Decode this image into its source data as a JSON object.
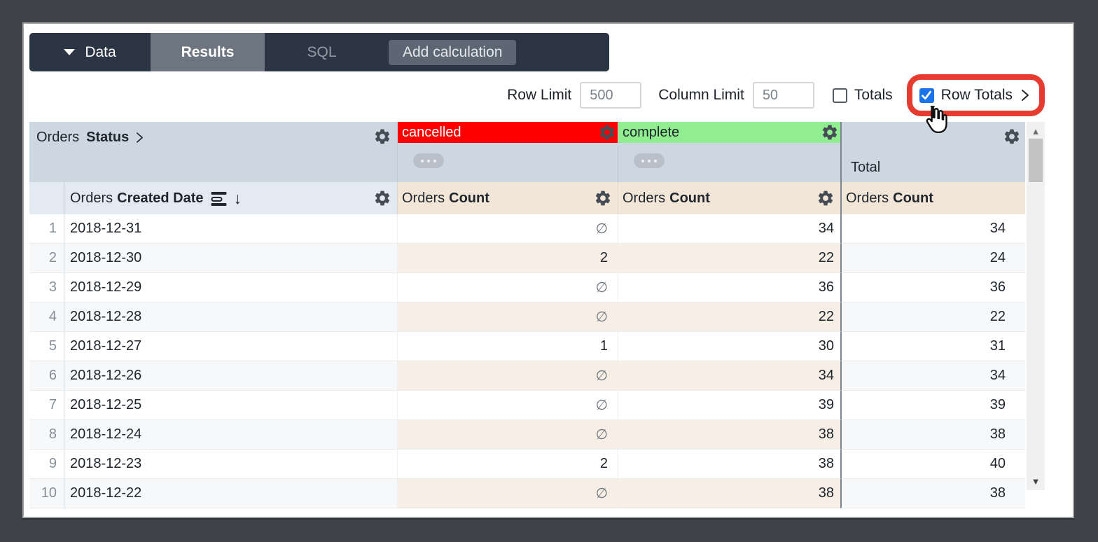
{
  "toolbar": {
    "data_label": "Data",
    "results_label": "Results",
    "sql_label": "SQL",
    "add_calculation_label": "Add calculation"
  },
  "controls": {
    "row_limit_label": "Row Limit",
    "row_limit_value": "500",
    "column_limit_label": "Column Limit",
    "column_limit_value": "50",
    "totals_label": "Totals",
    "totals_checked": false,
    "row_totals_label": "Row Totals",
    "row_totals_checked": true
  },
  "table": {
    "pivot_field": {
      "view": "Orders",
      "field": "Status"
    },
    "row_field": {
      "view": "Orders",
      "field": "Created Date"
    },
    "measure_field": {
      "view": "Orders",
      "field": "Count"
    },
    "pivot_values": [
      {
        "label": "cancelled",
        "color": "#ff0000",
        "text_color": "#ffffff"
      },
      {
        "label": "complete",
        "color": "#90ee90",
        "text_color": "#1d242b"
      }
    ],
    "row_total_label": "Total",
    "null_symbol": "∅",
    "rows": [
      {
        "index": 1,
        "date": "2018-12-31",
        "cancelled": null,
        "complete": 34,
        "total": 34
      },
      {
        "index": 2,
        "date": "2018-12-30",
        "cancelled": 2,
        "complete": 22,
        "total": 24
      },
      {
        "index": 3,
        "date": "2018-12-29",
        "cancelled": null,
        "complete": 36,
        "total": 36
      },
      {
        "index": 4,
        "date": "2018-12-28",
        "cancelled": null,
        "complete": 22,
        "total": 22
      },
      {
        "index": 5,
        "date": "2018-12-27",
        "cancelled": 1,
        "complete": 30,
        "total": 31
      },
      {
        "index": 6,
        "date": "2018-12-26",
        "cancelled": null,
        "complete": 34,
        "total": 34
      },
      {
        "index": 7,
        "date": "2018-12-25",
        "cancelled": null,
        "complete": 39,
        "total": 39
      },
      {
        "index": 8,
        "date": "2018-12-24",
        "cancelled": null,
        "complete": 38,
        "total": 38
      },
      {
        "index": 9,
        "date": "2018-12-23",
        "cancelled": 2,
        "complete": 38,
        "total": 40
      },
      {
        "index": 10,
        "date": "2018-12-22",
        "cancelled": null,
        "complete": 38,
        "total": 38
      }
    ]
  },
  "colors": {
    "checkbox_accent": "#1a73e8",
    "highlight_ring": "#e63c2f",
    "cancelled_bg": "#ff0000",
    "complete_bg": "#90ee90",
    "header_band": "#ccd7e2",
    "subheader_band": "#e3eaf2",
    "measure_header": "#f2e6d9"
  }
}
